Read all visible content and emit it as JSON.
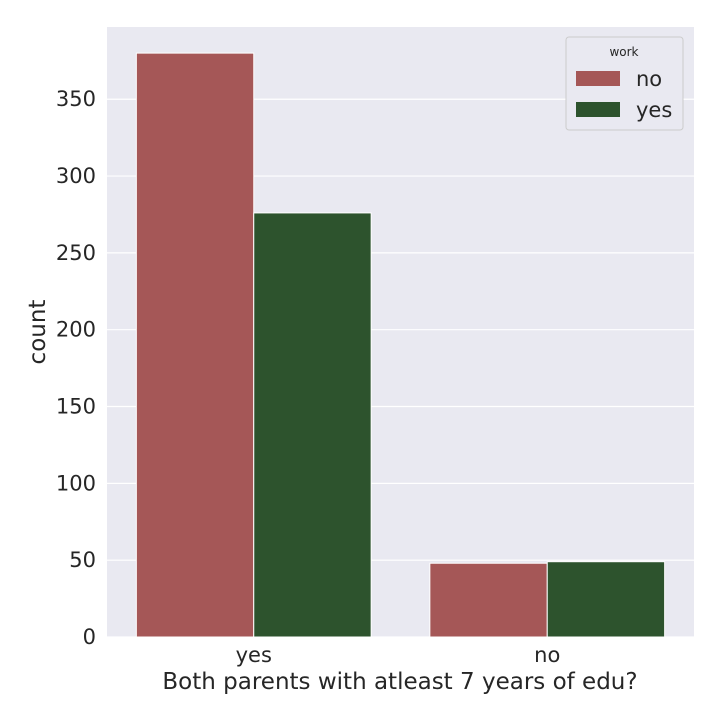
{
  "chart_data": {
    "type": "bar",
    "title": "",
    "xlabel": "Both parents with atleast 7 years of edu?",
    "ylabel": "count",
    "categories": [
      "yes",
      "no"
    ],
    "series": [
      {
        "name": "no",
        "values": [
          380,
          48
        ],
        "color": "#a55757"
      },
      {
        "name": "yes",
        "values": [
          276,
          49
        ],
        "color": "#2d532d"
      }
    ],
    "ylim": [
      0,
      397
    ],
    "yticks": [
      0,
      50,
      100,
      150,
      200,
      250,
      300,
      350
    ],
    "grid": true,
    "background": "#e9e9f1",
    "legend": {
      "title": "work",
      "placement": "top-right"
    }
  }
}
